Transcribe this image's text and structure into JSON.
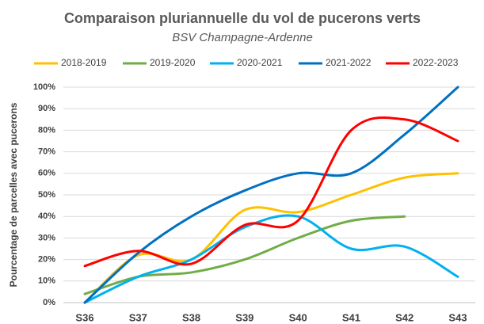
{
  "chart_data": {
    "type": "line",
    "title": "Comparaison pluriannuelle du vol de pucerons verts",
    "subtitle": "BSV Champagne-Ardenne",
    "y_label": "Pourcentage de parcelles avec pucerons",
    "categories": [
      "S36",
      "S37",
      "S38",
      "S39",
      "S40",
      "S41",
      "S42",
      "S43"
    ],
    "series": [
      {
        "name": "2018-2019",
        "color": "#ffc000",
        "values": [
          0,
          22,
          20,
          43,
          42,
          50,
          58,
          60
        ]
      },
      {
        "name": "2019-2020",
        "color": "#70ad47",
        "values": [
          4,
          12,
          14,
          20,
          30,
          38,
          40,
          null
        ]
      },
      {
        "name": "2020-2021",
        "color": "#00b0f0",
        "values": [
          0,
          12,
          20,
          35,
          40,
          25,
          26,
          12
        ]
      },
      {
        "name": "2021-2022",
        "color": "#0070c0",
        "values": [
          0,
          23,
          40,
          52,
          60,
          60,
          78,
          100
        ]
      },
      {
        "name": "2022-2023",
        "color": "#ff0000",
        "values": [
          17,
          24,
          18,
          36,
          38,
          80,
          85,
          75
        ]
      }
    ],
    "ylim": [
      0,
      100
    ],
    "yticks": [
      {
        "value": 0,
        "label": "0%"
      },
      {
        "value": 10,
        "label": "10%"
      },
      {
        "value": 20,
        "label": "20%"
      },
      {
        "value": 30,
        "label": "30%"
      },
      {
        "value": 40,
        "label": "40%"
      },
      {
        "value": 50,
        "label": "50%"
      },
      {
        "value": 60,
        "label": "60%"
      },
      {
        "value": 70,
        "label": "70%"
      },
      {
        "value": 80,
        "label": "80%"
      },
      {
        "value": 90,
        "label": "90%"
      },
      {
        "value": 100,
        "label": "100%"
      }
    ],
    "grid": true,
    "legend": "top",
    "smooth": true
  }
}
